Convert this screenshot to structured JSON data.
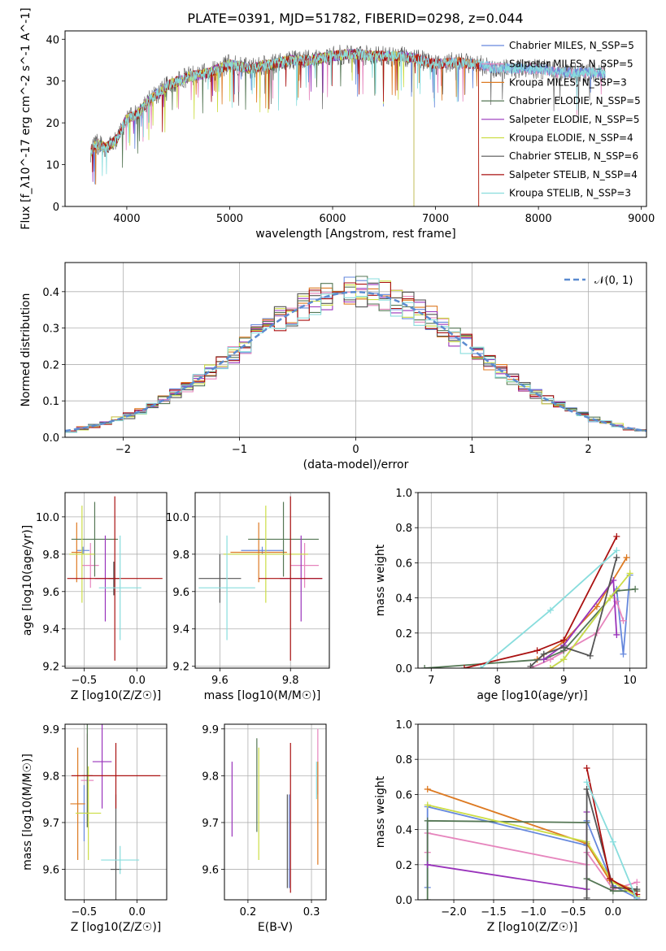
{
  "title": "PLATE=0391, MJD=51782, FIBERID=0298, z=0.044",
  "colors": [
    "#6688dd",
    "#e685bd",
    "#dd7a22",
    "#557755",
    "#9933bb",
    "#ccdd44",
    "#555555",
    "#aa1111",
    "#88dddd"
  ],
  "chart_data": [
    {
      "id": "spectrum",
      "type": "line",
      "xlabel": "wavelength [Angstrom, rest frame]",
      "ylabel": "Flux [f_λ10^-17 erg cm^-2 s^-1 A^-1]",
      "xlim": [
        3400,
        9050
      ],
      "ylim": [
        0,
        42
      ],
      "xticks": [
        4000,
        5000,
        6000,
        7000,
        8000,
        9000
      ],
      "yticks": [
        0,
        10,
        20,
        30,
        40
      ],
      "legend_position": "right",
      "series": [
        {
          "name": "Chabrier MILES, N_SSP=5",
          "x_range": [
            3650,
            8650
          ]
        },
        {
          "name": "Salpeter MILES, N_SSP=5",
          "x_range": [
            3650,
            8650
          ]
        },
        {
          "name": "Kroupa MILES, N_SSP=3",
          "x_range": [
            3650,
            7420
          ]
        },
        {
          "name": "Chabrier ELODIE, N_SSP=5",
          "x_range": [
            3650,
            6790
          ]
        },
        {
          "name": "Salpeter ELODIE, N_SSP=5",
          "x_range": [
            3650,
            6790
          ]
        },
        {
          "name": "Kroupa ELODIE, N_SSP=4",
          "x_range": [
            3650,
            6790
          ]
        },
        {
          "name": "Chabrier STELIB, N_SSP=6",
          "x_range": [
            3650,
            8650
          ]
        },
        {
          "name": "Salpeter STELIB, N_SSP=4",
          "x_range": [
            3650,
            7420
          ]
        },
        {
          "name": "Kroupa STELIB, N_SSP=3",
          "x_range": [
            3650,
            8650
          ]
        }
      ],
      "continuum": {
        "x": [
          3650,
          3700,
          3800,
          3900,
          4000,
          4100,
          4200,
          4400,
          4600,
          4800,
          5000,
          5200,
          5400,
          5600,
          5800,
          6000,
          6200,
          6400,
          6600,
          6800,
          7000,
          7200,
          7400,
          7600,
          7800,
          8000,
          8200,
          8400,
          8650
        ],
        "y": [
          13,
          15,
          14,
          16,
          21,
          22,
          25,
          29,
          31,
          32,
          34,
          33,
          34,
          35,
          35,
          36,
          36.5,
          36,
          36,
          35.5,
          34,
          34.5,
          34,
          33,
          33,
          33,
          32,
          32,
          32
        ]
      }
    },
    {
      "id": "residuals",
      "type": "histogram",
      "xlabel": "(data-model)/error",
      "ylabel": "Normed distribution",
      "xlim": [
        -2.5,
        2.5
      ],
      "ylim": [
        0,
        0.48
      ],
      "xticks": [
        -2,
        -1,
        0,
        1,
        2
      ],
      "yticks": [
        0.0,
        0.1,
        0.2,
        0.3,
        0.4
      ],
      "bin_width": 0.1,
      "legend": "𝒩(0, 1)",
      "reference_curve": "normal(0,1)"
    },
    {
      "id": "age-vs-Z",
      "type": "scatter",
      "xlabel": "Z [log10(Z/Z☉)]",
      "ylabel": "age  [log10(age/yr)]",
      "xlim": [
        -0.68,
        0.28
      ],
      "ylim": [
        9.19,
        10.13
      ],
      "xticks": [
        -0.5,
        0.0
      ],
      "yticks": [
        9.2,
        9.4,
        9.6,
        9.8,
        10.0
      ],
      "points": [
        {
          "x": -0.51,
          "y": 9.82,
          "xerr": 0.06,
          "yerr": 0.02
        },
        {
          "x": -0.44,
          "y": 9.74,
          "xerr": 0.08,
          "yerr": 0.12
        },
        {
          "x": -0.57,
          "y": 9.81,
          "xerr": 0.05,
          "yerr": 0.16
        },
        {
          "x": -0.4,
          "y": 9.88,
          "xerr": 0.22,
          "yerr": 0.2
        },
        {
          "x": -0.3,
          "y": 9.67,
          "xerr": 0.1,
          "yerr": 0.23
        },
        {
          "x": -0.52,
          "y": 9.8,
          "xerr": 0.12,
          "yerr": 0.26
        },
        {
          "x": -0.22,
          "y": 9.67,
          "xerr": 0.05,
          "yerr": 0.09
        },
        {
          "x": -0.21,
          "y": 9.67,
          "xerr": 0.45,
          "yerr": 0.44
        },
        {
          "x": -0.16,
          "y": 9.62,
          "xerr": 0.2,
          "yerr": 0.28
        }
      ]
    },
    {
      "id": "age-vs-mass",
      "type": "scatter",
      "xlabel": "mass [log10(M/M☉)]",
      "ylabel": "",
      "xlim": [
        9.53,
        9.91
      ],
      "ylim": [
        9.19,
        10.13
      ],
      "xticks": [
        9.6,
        9.8
      ],
      "yticks": [
        9.2,
        9.4,
        9.6,
        9.8,
        10.0
      ],
      "points": [
        {
          "x": 9.72,
          "y": 9.82,
          "xerr": 0.06,
          "yerr": 0.02
        },
        {
          "x": 9.84,
          "y": 9.74,
          "xerr": 0.04,
          "yerr": 0.12
        },
        {
          "x": 9.71,
          "y": 9.81,
          "xerr": 0.08,
          "yerr": 0.16
        },
        {
          "x": 9.78,
          "y": 9.88,
          "xerr": 0.1,
          "yerr": 0.2
        },
        {
          "x": 9.83,
          "y": 9.67,
          "xerr": 0.06,
          "yerr": 0.23
        },
        {
          "x": 9.73,
          "y": 9.8,
          "xerr": 0.12,
          "yerr": 0.26
        },
        {
          "x": 9.6,
          "y": 9.67,
          "xerr": 0.06,
          "yerr": 0.13
        },
        {
          "x": 9.8,
          "y": 9.67,
          "xerr": 0.09,
          "yerr": 0.44
        },
        {
          "x": 9.62,
          "y": 9.62,
          "xerr": 0.08,
          "yerr": 0.28
        }
      ]
    },
    {
      "id": "massweight-vs-age",
      "type": "line",
      "xlabel": "age  [log10(age/yr)]",
      "ylabel": "mass weight",
      "xlim": [
        6.8,
        10.25
      ],
      "ylim": [
        0,
        1.0
      ],
      "xticks": [
        7,
        8,
        9,
        10
      ],
      "yticks": [
        0.0,
        0.2,
        0.4,
        0.6,
        0.8,
        1.0
      ],
      "series": [
        {
          "x": [
            8.8,
            9.0,
            9.8,
            9.9,
            10.0
          ],
          "y": [
            0.0,
            0.05,
            0.45,
            0.08,
            0.53
          ]
        },
        {
          "x": [
            8.5,
            8.8,
            9.5,
            9.8,
            9.9
          ],
          "y": [
            0.0,
            0.05,
            0.2,
            0.38,
            0.27
          ]
        },
        {
          "x": [
            8.6,
            9.0,
            9.5,
            9.95
          ],
          "y": [
            0.05,
            0.15,
            0.35,
            0.63
          ]
        },
        {
          "x": [
            6.9,
            8.7,
            9.0,
            9.8,
            10.08
          ],
          "y": [
            0.0,
            0.05,
            0.1,
            0.44,
            0.45
          ]
        },
        {
          "x": [
            8.7,
            9.0,
            9.75,
            9.8
          ],
          "y": [
            0.05,
            0.13,
            0.5,
            0.19
          ]
        },
        {
          "x": [
            8.8,
            9.0,
            9.7,
            10.0
          ],
          "y": [
            0.0,
            0.05,
            0.4,
            0.54
          ]
        },
        {
          "x": [
            8.5,
            8.7,
            9.0,
            9.4,
            9.8
          ],
          "y": [
            0.01,
            0.08,
            0.12,
            0.07,
            0.63
          ]
        },
        {
          "x": [
            7.5,
            8.6,
            9.0,
            9.8
          ],
          "y": [
            0.0,
            0.1,
            0.16,
            0.75
          ]
        },
        {
          "x": [
            7.75,
            8.8,
            9.8
          ],
          "y": [
            0.0,
            0.33,
            0.67
          ]
        }
      ]
    },
    {
      "id": "mass-vs-Z",
      "type": "scatter",
      "xlabel": "Z [log10(Z/Z☉)]",
      "ylabel": "mass [log10(M/M☉)]",
      "xlim": [
        -0.68,
        0.28
      ],
      "ylim": [
        9.535,
        9.91
      ],
      "xticks": [
        -0.5,
        0.0
      ],
      "yticks": [
        9.6,
        9.7,
        9.8,
        9.9
      ],
      "points": [
        {
          "x": -0.5,
          "y": 9.72,
          "xerr": 0.05,
          "yerr": 0.06
        },
        {
          "x": -0.47,
          "y": 9.79,
          "xerr": 0.06,
          "yerr": 0.1
        },
        {
          "x": -0.56,
          "y": 9.74,
          "xerr": 0.07,
          "yerr": 0.12
        },
        {
          "x": -0.47,
          "y": 9.8,
          "xerr": 0.05,
          "yerr": 0.11
        },
        {
          "x": -0.33,
          "y": 9.83,
          "xerr": 0.09,
          "yerr": 0.1
        },
        {
          "x": -0.46,
          "y": 9.72,
          "xerr": 0.12,
          "yerr": 0.1
        },
        {
          "x": -0.2,
          "y": 9.6,
          "xerr": 0.05,
          "yerr": 0.16
        },
        {
          "x": -0.2,
          "y": 9.8,
          "xerr": 0.42,
          "yerr": 0.07
        },
        {
          "x": -0.16,
          "y": 9.62,
          "xerr": 0.18,
          "yerr": 0.03
        }
      ]
    },
    {
      "id": "mass-vs-EBV",
      "type": "scatter",
      "xlabel": "E(B-V)",
      "ylabel": "",
      "xlim": [
        0.163,
        0.323
      ],
      "ylim": [
        9.535,
        9.91
      ],
      "xticks": [
        0.2,
        0.3
      ],
      "yticks": [
        9.6,
        9.7,
        9.8,
        9.9
      ],
      "points": [
        {
          "x": 0.265,
          "y": 9.66,
          "yerr": 0.1
        },
        {
          "x": 0.31,
          "y": 9.83,
          "yerr": 0.07
        },
        {
          "x": 0.31,
          "y": 9.72,
          "yerr": 0.11
        },
        {
          "x": 0.214,
          "y": 9.78,
          "yerr": 0.1
        },
        {
          "x": 0.175,
          "y": 9.75,
          "yerr": 0.08
        },
        {
          "x": 0.217,
          "y": 9.74,
          "yerr": 0.12
        },
        {
          "x": 0.262,
          "y": 9.66,
          "yerr": 0.1
        },
        {
          "x": 0.267,
          "y": 9.71,
          "yerr": 0.16
        },
        {
          "x": 0.308,
          "y": 9.79,
          "yerr": 0.04
        }
      ]
    },
    {
      "id": "massweight-vs-Z",
      "type": "line",
      "xlabel": "Z [log10(Z/Z☉)]",
      "ylabel": "mass weight",
      "xlim": [
        -2.45,
        0.42
      ],
      "ylim": [
        0,
        1.0
      ],
      "xticks": [
        -2.0,
        -1.5,
        -1.0,
        -0.5,
        0.0
      ],
      "yticks": [
        0.0,
        0.2,
        0.4,
        0.6,
        0.8,
        1.0
      ],
      "series": [
        {
          "x": [
            -2.33,
            -2.33,
            -0.33,
            -0.33,
            0.0,
            0.3
          ],
          "y": [
            0.07,
            0.53,
            0.31,
            0.45,
            0.08,
            0.01
          ]
        },
        {
          "x": [
            -2.33,
            -2.33,
            -0.33,
            -0.33,
            0.0,
            0.3
          ],
          "y": [
            0.27,
            0.38,
            0.2,
            0.27,
            0.06,
            0.1
          ]
        },
        {
          "x": [
            -2.33,
            -0.33,
            -0.04,
            0.3
          ],
          "y": [
            0.63,
            0.32,
            0.11,
            0.05
          ]
        },
        {
          "x": [
            -2.33,
            -2.33,
            -0.33,
            -0.33,
            0.0,
            0.3
          ],
          "y": [
            0.0,
            0.45,
            0.44,
            0.12,
            0.05,
            0.05
          ]
        },
        {
          "x": [
            -2.33,
            -0.33,
            -0.33
          ],
          "y": [
            0.2,
            0.06,
            0.5
          ]
        },
        {
          "x": [
            -2.33,
            -0.33,
            0.0,
            0.3
          ],
          "y": [
            0.54,
            0.33,
            0.1,
            0.02
          ]
        },
        {
          "x": [
            -0.33,
            -0.33,
            0.0,
            0.3
          ],
          "y": [
            0.01,
            0.63,
            0.07,
            0.06
          ]
        },
        {
          "x": [
            -0.33,
            -0.04,
            0.3
          ],
          "y": [
            0.75,
            0.12,
            0.03
          ]
        },
        {
          "x": [
            -0.33,
            0.0,
            0.3
          ],
          "y": [
            0.67,
            0.33,
            0.0
          ]
        }
      ]
    }
  ]
}
